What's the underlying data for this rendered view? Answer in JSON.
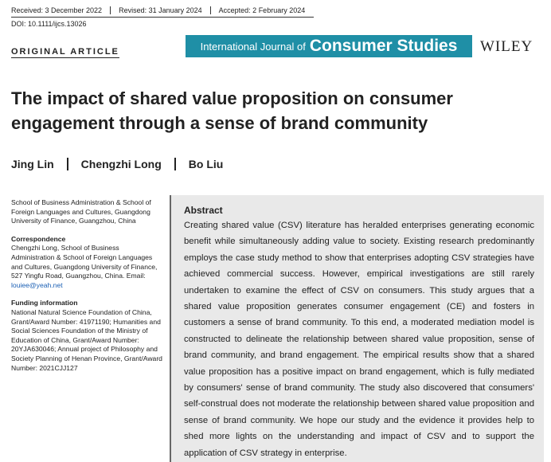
{
  "header": {
    "received": "Received: 3 December 2022",
    "revised": "Revised: 31 January 2024",
    "accepted": "Accepted: 2 February 2024",
    "doi": "DOI: 10.1111/ijcs.13026"
  },
  "article_type": "ORIGINAL ARTICLE",
  "journal": {
    "name_prefix": "International Journal of",
    "name_main": "Consumer Studies",
    "publisher": "WILEY"
  },
  "title": "The impact of shared value proposition on consumer engagement through a sense of brand community",
  "authors": [
    "Jing Lin",
    "Chengzhi Long",
    "Bo Liu"
  ],
  "affiliation": "School of Business Administration & School of Foreign Languages and Cultures, Guangdong University of Finance, Guangzhou, China",
  "correspondence": {
    "heading": "Correspondence",
    "text": "Chengzhi Long, School of Business Administration & School of Foreign Languages and Cultures, Guangdong University of Finance, 527 Yingfu Road, Guangzhou, China.",
    "email_label": "Email:",
    "email": "louiee@yeah.net"
  },
  "funding": {
    "heading": "Funding information",
    "text": "National Natural Science Foundation of China, Grant/Award Number: 41971190; Humanities and Social Sciences Foundation of the Ministry of Education of China, Grant/Award Number: 20YJA630046; Annual project of Philosophy and Society Planning of Henan Province, Grant/Award Number: 2021CJJ127"
  },
  "abstract": {
    "heading": "Abstract",
    "text": "Creating shared value (CSV) literature has heralded enterprises generating economic benefit while simultaneously adding value to society. Existing research predominantly employs the case study method to show that enterprises adopting CSV strategies have achieved commercial success. However, empirical investigations are still rarely undertaken to examine the effect of CSV on consumers. This study argues that a shared value proposition generates consumer engagement (CE) and fosters in customers a sense of brand community. To this end, a moderated mediation model is constructed to delineate the relationship between shared value proposition, sense of brand community, and brand engagement. The empirical results show that a shared value proposition has a positive impact on brand engagement, which is fully mediated by consumers' sense of brand community. The study also discovered that consumers' self-construal does not moderate the relationship between shared value proposition and sense of brand community. We hope our study and the evidence it provides help to shed more lights on the understanding and impact of CSV and to support the application of CSV strategy in enterprise."
  }
}
